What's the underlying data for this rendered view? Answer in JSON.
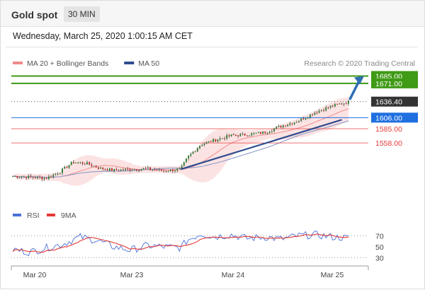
{
  "header": {
    "title": "Gold spot",
    "timeframe": "30 MIN"
  },
  "timestamp": "Wednesday, March 25, 2020 1:00:15 AM CET",
  "legend": {
    "items": [
      {
        "label": "MA 20 + Bollinger Bands",
        "color": "#f28b8b"
      },
      {
        "label": "MA 50",
        "color": "#2f4d8f"
      }
    ],
    "credit": "Research © 2020 Trading Central"
  },
  "levels": [
    {
      "value": 1685.0,
      "label": "1685.00",
      "color": "#3f9a15",
      "kind": "resistance"
    },
    {
      "value": 1671.0,
      "label": "1671.00",
      "color": "#3f9a15",
      "kind": "resistance"
    },
    {
      "value": 1636.4,
      "label": "1636.40",
      "color": "#333333",
      "kind": "last"
    },
    {
      "value": 1606.0,
      "label": "1606.00",
      "color": "#1f6fe0",
      "kind": "pivot"
    },
    {
      "value": 1585.0,
      "label": "1585.00",
      "color": "#e53935",
      "kind": "support"
    },
    {
      "value": 1558.0,
      "label": "1558.00",
      "color": "#e53935",
      "kind": "support"
    }
  ],
  "chart_data": [
    {
      "type": "candlestick",
      "instrument": "Gold spot",
      "interval": "30 MIN",
      "x_ticks": [
        "Mar 20",
        "Mar 23",
        "Mar 24",
        "Mar 25"
      ],
      "y_range": [
        1440,
        1695
      ],
      "close_path": [
        [
          0,
          1495
        ],
        [
          0.06,
          1493
        ],
        [
          0.1,
          1491
        ],
        [
          0.14,
          1503
        ],
        [
          0.18,
          1522
        ],
        [
          0.22,
          1519
        ],
        [
          0.26,
          1510
        ],
        [
          0.3,
          1506
        ],
        [
          0.35,
          1508
        ],
        [
          0.4,
          1509
        ],
        [
          0.45,
          1505
        ],
        [
          0.5,
          1508
        ],
        [
          0.52,
          1530
        ],
        [
          0.56,
          1555
        ],
        [
          0.6,
          1563
        ],
        [
          0.65,
          1572
        ],
        [
          0.7,
          1574
        ],
        [
          0.75,
          1578
        ],
        [
          0.8,
          1590
        ],
        [
          0.85,
          1600
        ],
        [
          0.9,
          1616
        ],
        [
          0.95,
          1628
        ],
        [
          1.0,
          1636
        ]
      ],
      "last": 1636.4,
      "projection": {
        "from": 1640,
        "to": 1685
      }
    },
    {
      "type": "line",
      "title": "RSI",
      "series": [
        {
          "name": "RSI",
          "color": "#4a6fd8"
        },
        {
          "name": "9MA",
          "color": "#e53935"
        }
      ],
      "y_ticks": [
        70,
        50,
        30
      ],
      "rsi_path": [
        [
          0,
          45
        ],
        [
          0.05,
          40
        ],
        [
          0.1,
          48
        ],
        [
          0.15,
          55
        ],
        [
          0.2,
          68
        ],
        [
          0.25,
          62
        ],
        [
          0.3,
          50
        ],
        [
          0.35,
          44
        ],
        [
          0.4,
          52
        ],
        [
          0.45,
          50
        ],
        [
          0.5,
          48
        ],
        [
          0.52,
          62
        ],
        [
          0.56,
          74
        ],
        [
          0.6,
          68
        ],
        [
          0.65,
          72
        ],
        [
          0.7,
          65
        ],
        [
          0.75,
          68
        ],
        [
          0.8,
          64
        ],
        [
          0.85,
          70
        ],
        [
          0.9,
          72
        ],
        [
          0.95,
          68
        ],
        [
          1.0,
          66
        ]
      ]
    }
  ]
}
